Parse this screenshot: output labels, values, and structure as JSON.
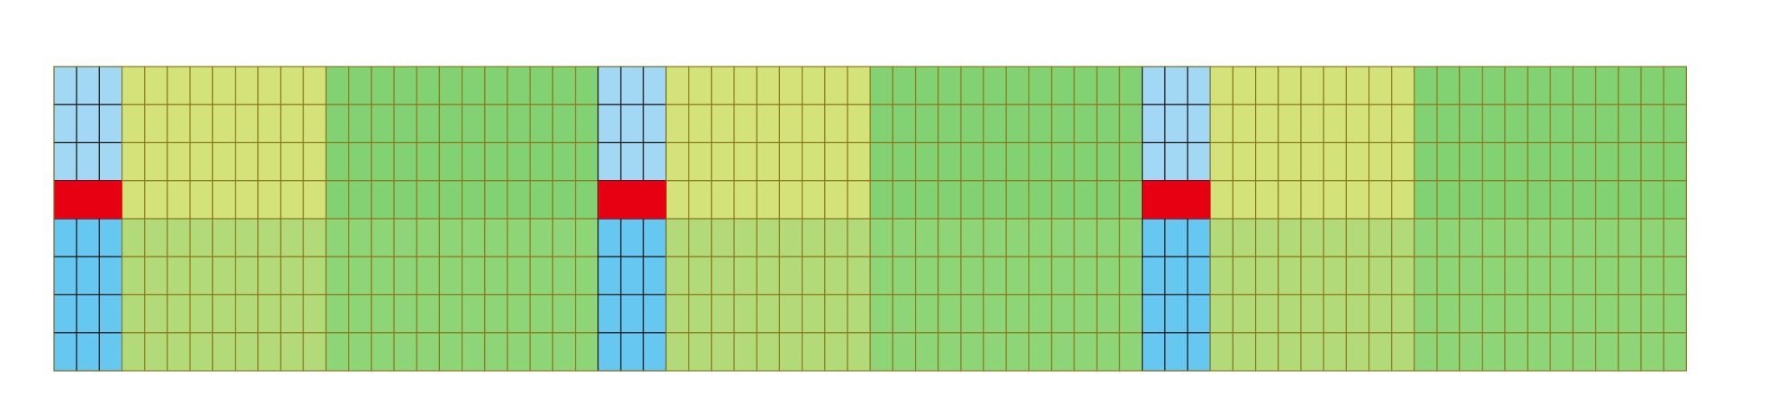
{
  "diagram": {
    "rows": 8,
    "blocks": [
      {
        "name": "block-1",
        "regions": [
          {
            "name": "blue",
            "cols": 3
          },
          {
            "name": "yellow-green",
            "cols": 9
          },
          {
            "name": "green",
            "cols": 12
          }
        ],
        "marker_row": 4
      },
      {
        "name": "block-2",
        "regions": [
          {
            "name": "blue",
            "cols": 3
          },
          {
            "name": "yellow-green",
            "cols": 9
          },
          {
            "name": "green",
            "cols": 12
          }
        ],
        "marker_row": 4
      },
      {
        "name": "block-3",
        "regions": [
          {
            "name": "blue",
            "cols": 3
          },
          {
            "name": "yellow-green",
            "cols": 9
          },
          {
            "name": "green",
            "cols": 12
          }
        ],
        "marker_row": 4
      }
    ],
    "colors": {
      "blue_top": "#a3d8f5",
      "blue_bottom": "#66c7f1",
      "yellowgreen_top": "#d3e37a",
      "yellowgreen_bottom": "#b3da78",
      "green_top": "#82d173",
      "green_bottom": "#8dd577",
      "marker": "#e60012",
      "grid_line_blue": "#1a1a1a",
      "grid_line_green": "#8b7a1e",
      "background": "#ffffff"
    }
  }
}
